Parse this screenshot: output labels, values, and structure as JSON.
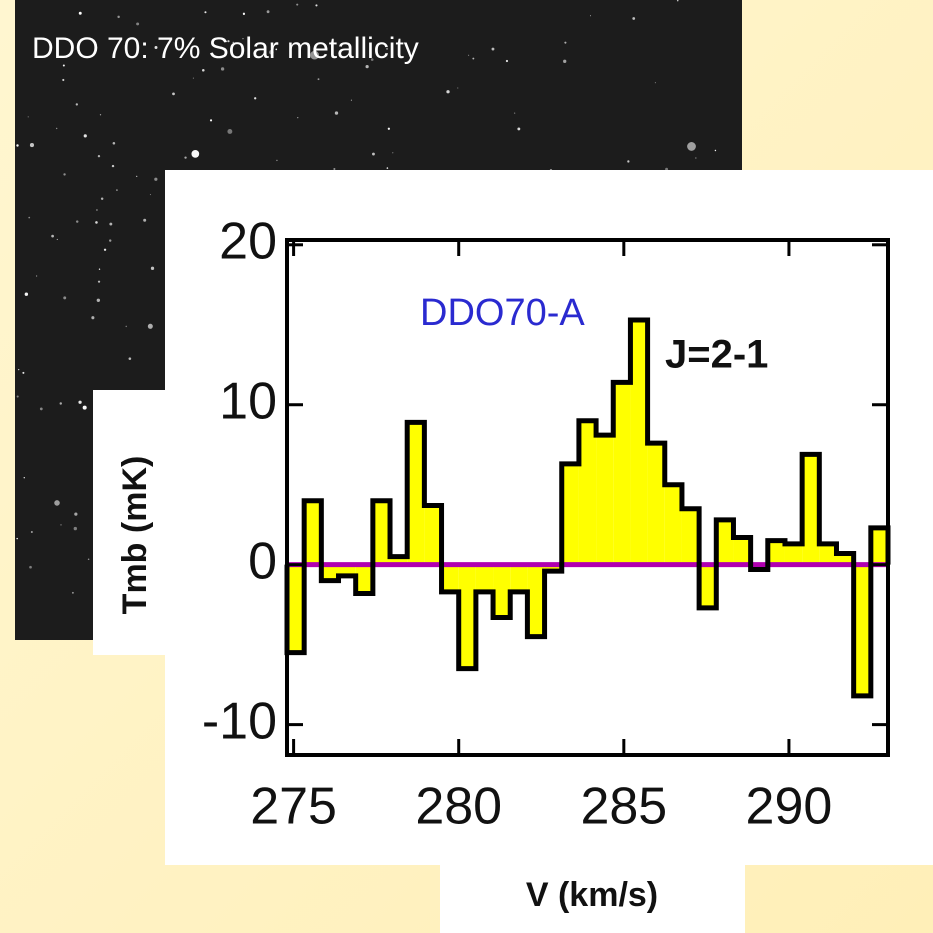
{
  "chart_data": {
    "type": "histogram",
    "title": "DDO 70: 7% Solar metallicity",
    "subtitle": "DDO70-A",
    "annotation": "J=2-1",
    "x_label": "V (km/s)",
    "y_label": "Tmb (mK)",
    "bins": [
      274.8,
      275.32,
      275.84,
      276.36,
      276.88,
      277.4,
      277.92,
      278.44,
      278.96,
      279.48,
      280.0,
      280.52,
      281.04,
      281.56,
      282.08,
      282.6,
      283.12,
      283.64,
      284.16,
      284.68,
      285.2,
      285.72,
      286.24,
      286.76,
      287.28,
      287.8,
      288.32,
      288.84,
      289.36,
      289.88,
      290.4,
      290.92,
      291.44,
      291.96,
      292.48,
      293.0
    ],
    "values": [
      -5.5,
      4.0,
      -1.0,
      -0.7,
      -1.8,
      4.0,
      0.5,
      8.9,
      3.7,
      -1.7,
      -6.5,
      -1.7,
      -3.3,
      -1.7,
      -4.5,
      -0.4,
      6.3,
      9.0,
      8.1,
      11.4,
      15.3,
      7.6,
      5.0,
      3.5,
      -2.7,
      2.8,
      1.7,
      -0.3,
      1.5,
      1.3,
      6.9,
      1.3,
      0.7,
      -8.2,
      2.3
    ],
    "color": "#ffff00",
    "baseline_color": "#b000b0",
    "xlim": [
      274.8,
      293.0
    ],
    "ylim": [
      -11.9,
      20.3
    ],
    "xticks": [
      275,
      280,
      285,
      290
    ],
    "yticks": [
      -10,
      0,
      10,
      20
    ]
  }
}
